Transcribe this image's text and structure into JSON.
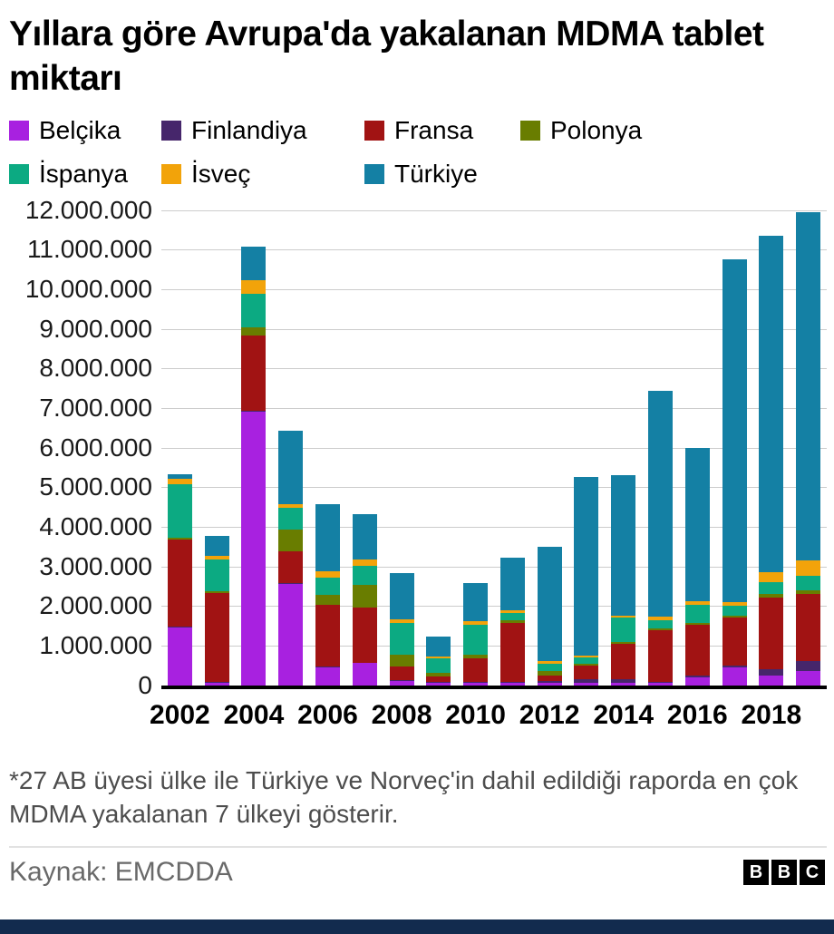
{
  "title": "Yıllara göre Avrupa'da yakalanan MDMA tablet miktarı",
  "footnote": "*27 AB üyesi ülke ile Türkiye ve Norveç'in dahil edildiği raporda en çok MDMA yakalanan 7 ülkeyi gösterir.",
  "source": "Kaynak: EMCDDA",
  "logo": {
    "letters": [
      "B",
      "B",
      "C"
    ]
  },
  "colors": {
    "bottom_bar": "#122b4e",
    "gridline": "#cccccc",
    "axis": "#000000"
  },
  "chart_data": {
    "type": "bar",
    "stacked": true,
    "title": "Yıllara göre Avrupa'da yakalanan MDMA tablet miktarı",
    "categories": [
      "2002",
      "2003",
      "2004",
      "2005",
      "2006",
      "2007",
      "2008",
      "2009",
      "2010",
      "2011",
      "2012",
      "2013",
      "2014",
      "2015",
      "2016",
      "2017",
      "2018",
      "2019"
    ],
    "series": [
      {
        "name": "Belçika",
        "color": "#a821e0",
        "values": [
          1450000,
          50000,
          6900000,
          2550000,
          450000,
          550000,
          100000,
          50000,
          50000,
          50000,
          50000,
          50000,
          50000,
          50000,
          200000,
          450000,
          250000,
          350000
        ]
      },
      {
        "name": "Finlandiya",
        "color": "#46266b",
        "values": [
          20000,
          20000,
          30000,
          30000,
          20000,
          20000,
          20000,
          20000,
          20000,
          30000,
          50000,
          100000,
          100000,
          30000,
          30000,
          50000,
          150000,
          250000
        ]
      },
      {
        "name": "Fransa",
        "color": "#a11313",
        "values": [
          2200000,
          2250000,
          1900000,
          800000,
          1550000,
          1400000,
          350000,
          150000,
          600000,
          1500000,
          150000,
          350000,
          900000,
          1300000,
          1300000,
          1200000,
          1800000,
          1700000
        ]
      },
      {
        "name": "Polonya",
        "color": "#697d00",
        "values": [
          50000,
          50000,
          200000,
          550000,
          250000,
          550000,
          300000,
          100000,
          100000,
          50000,
          100000,
          50000,
          50000,
          50000,
          50000,
          50000,
          100000,
          100000
        ]
      },
      {
        "name": "İspanya",
        "color": "#0caa82",
        "values": [
          1350000,
          800000,
          850000,
          550000,
          450000,
          500000,
          800000,
          350000,
          750000,
          200000,
          200000,
          150000,
          600000,
          200000,
          450000,
          250000,
          300000,
          350000
        ]
      },
      {
        "name": "İsveç",
        "color": "#f2a30a",
        "values": [
          150000,
          100000,
          350000,
          100000,
          150000,
          150000,
          100000,
          50000,
          100000,
          50000,
          50000,
          50000,
          50000,
          100000,
          100000,
          100000,
          250000,
          400000
        ]
      },
      {
        "name": "Türkiye",
        "color": "#1480a4",
        "values": [
          100000,
          500000,
          850000,
          1850000,
          1700000,
          1150000,
          1150000,
          500000,
          950000,
          1350000,
          2900000,
          4500000,
          3550000,
          5700000,
          3850000,
          8650000,
          8500000,
          8800000
        ]
      }
    ],
    "ylim": [
      0,
      12000000
    ],
    "y_ticks": [
      "12.000.000",
      "11.000.000",
      "10.000.000",
      "9.000.000",
      "8.000.000",
      "7.000.000",
      "6.000.000",
      "5.000.000",
      "4.000.000",
      "3.000.000",
      "2.000.000",
      "1.000.000",
      "0"
    ],
    "x_ticks": [
      "2002",
      "2004",
      "2006",
      "2008",
      "2010",
      "2012",
      "2014",
      "2016",
      "2018"
    ],
    "x_tick_positions": [
      0,
      2,
      4,
      6,
      8,
      10,
      12,
      14,
      16
    ],
    "grid": true,
    "legend_position": "top"
  }
}
